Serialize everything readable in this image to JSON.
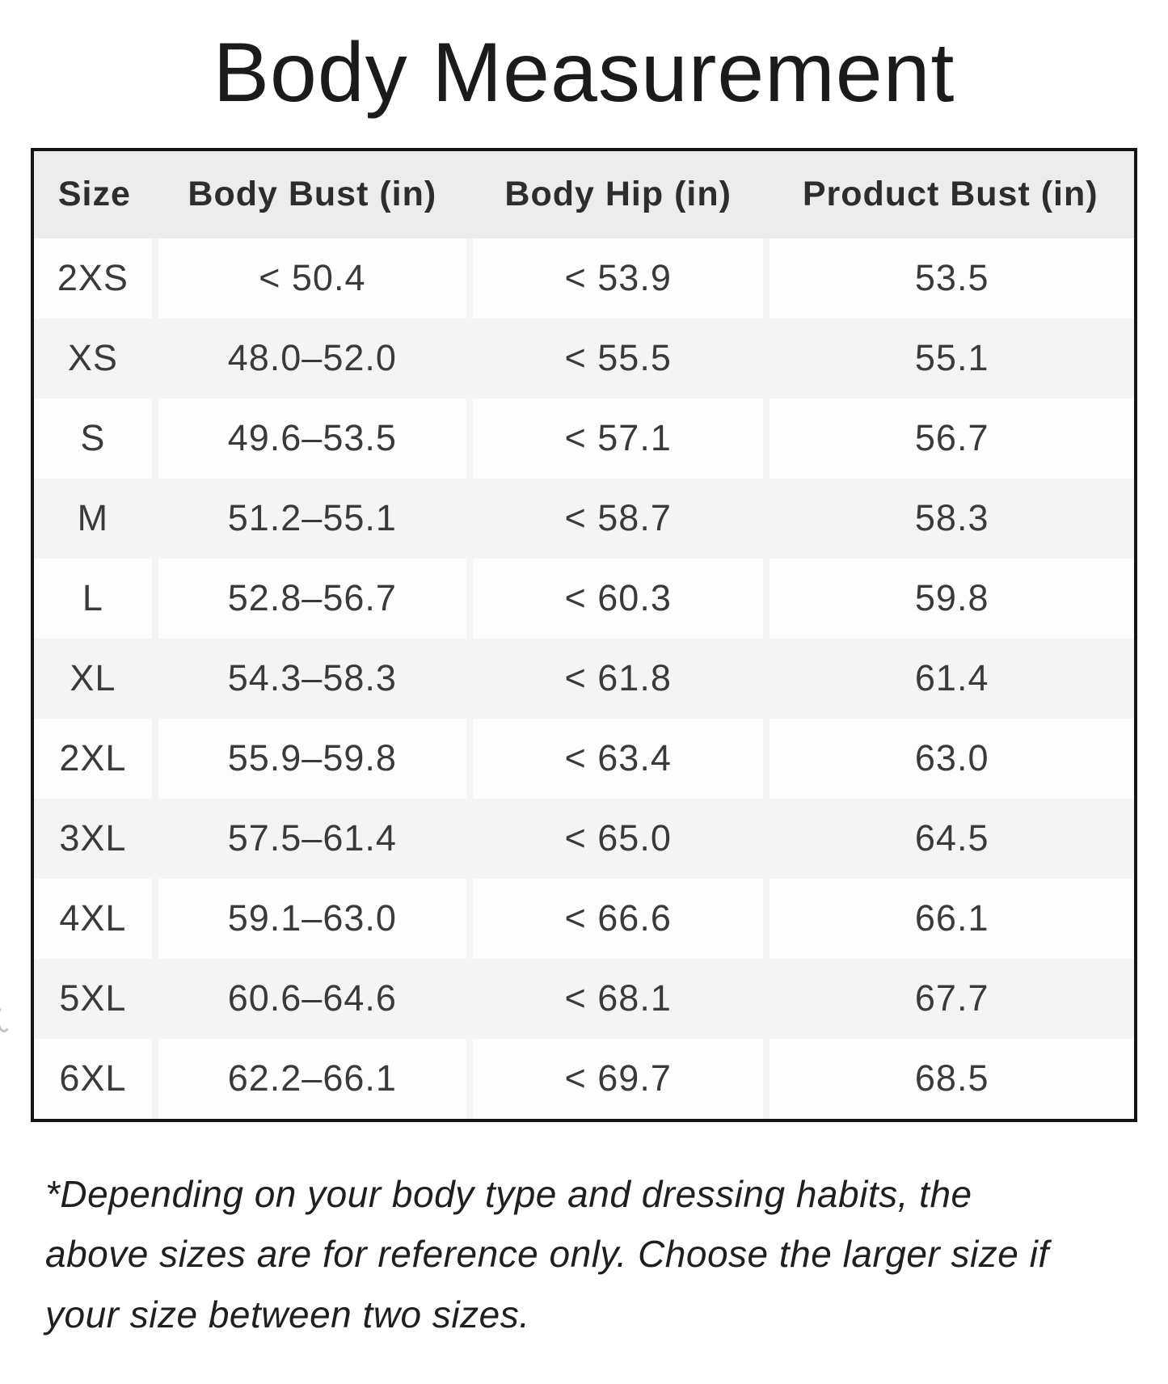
{
  "page": {
    "title": "Body Measurement",
    "footnote": "*Depending on your body type and dressing habits, the above sizes are for reference only. Choose the larger size if your size between two sizes."
  },
  "colors": {
    "table_border": "#141414",
    "header_bg": "#ececec",
    "row_alt_bg": "#f4f4f4",
    "row_bg": "#fdfdfd",
    "text": "#3a3a3a"
  },
  "table": {
    "columns": [
      "Size",
      "Body Bust (in)",
      "Body Hip (in)",
      "Product Bust (in)"
    ],
    "rows": [
      {
        "size": "2XS",
        "body_bust": "< 50.4",
        "body_hip": "< 53.9",
        "product_bust": "53.5"
      },
      {
        "size": "XS",
        "body_bust": "48.0–52.0",
        "body_hip": "< 55.5",
        "product_bust": "55.1"
      },
      {
        "size": "S",
        "body_bust": "49.6–53.5",
        "body_hip": "< 57.1",
        "product_bust": "56.7"
      },
      {
        "size": "M",
        "body_bust": "51.2–55.1",
        "body_hip": "< 58.7",
        "product_bust": "58.3"
      },
      {
        "size": "L",
        "body_bust": "52.8–56.7",
        "body_hip": "< 60.3",
        "product_bust": "59.8"
      },
      {
        "size": "XL",
        "body_bust": "54.3–58.3",
        "body_hip": "< 61.8",
        "product_bust": "61.4"
      },
      {
        "size": "2XL",
        "body_bust": "55.9–59.8",
        "body_hip": "< 63.4",
        "product_bust": "63.0"
      },
      {
        "size": "3XL",
        "body_bust": "57.5–61.4",
        "body_hip": "< 65.0",
        "product_bust": "64.5"
      },
      {
        "size": "4XL",
        "body_bust": "59.1–63.0",
        "body_hip": "< 66.6",
        "product_bust": "66.1"
      },
      {
        "size": "5XL",
        "body_bust": "60.6–64.6",
        "body_hip": "< 68.1",
        "product_bust": "67.7"
      },
      {
        "size": "6XL",
        "body_bust": "62.2–66.1",
        "body_hip": "< 69.7",
        "product_bust": "68.5"
      }
    ]
  }
}
